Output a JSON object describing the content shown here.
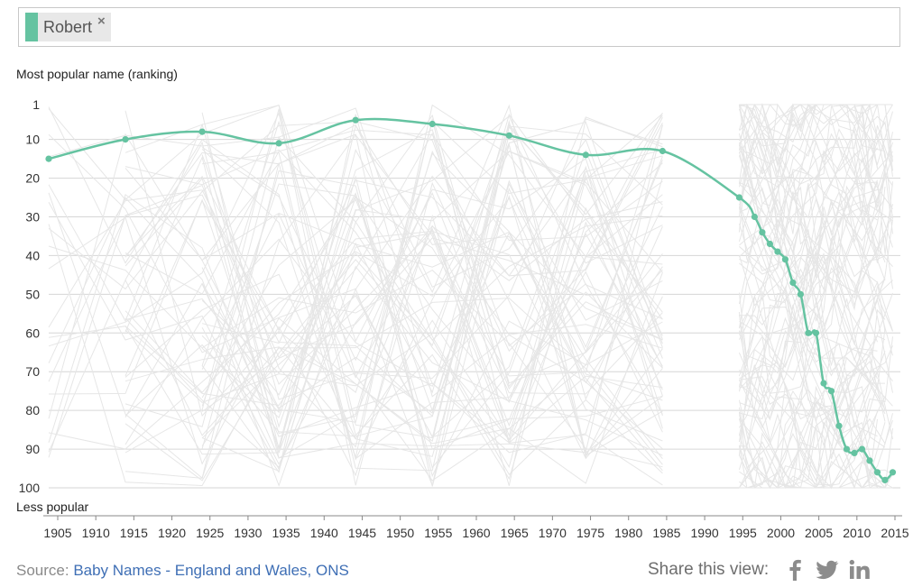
{
  "selection": {
    "tag_label": "Robert",
    "remove_symbol": "×",
    "color": "#65c3a1"
  },
  "chart_data": {
    "type": "line",
    "title": "",
    "ylabel": "Most popular name (ranking)",
    "ylabel_bottom": "Less popular",
    "xlabel": "",
    "x_ticks": [
      1905,
      1910,
      1915,
      1920,
      1925,
      1930,
      1935,
      1940,
      1945,
      1950,
      1955,
      1960,
      1965,
      1970,
      1975,
      1980,
      1985,
      1990,
      1995,
      2000,
      2005,
      2010,
      2015
    ],
    "y_ticks": [
      1,
      10,
      20,
      30,
      40,
      50,
      60,
      70,
      80,
      90,
      100
    ],
    "xlim": [
      1904,
      2015
    ],
    "ylim": [
      1,
      100
    ],
    "y_inverted": true,
    "grid": true,
    "series": [
      {
        "name": "Robert",
        "color": "#65c3a1",
        "x": [
          1904,
          1914,
          1924,
          1934,
          1944,
          1954,
          1964,
          1974,
          1984,
          1994,
          1996,
          1997,
          1998,
          1999,
          2000,
          2001,
          2002,
          2003,
          2004,
          2005,
          2006,
          2007,
          2008,
          2009,
          2010,
          2011,
          2012,
          2013,
          2014
        ],
        "y": [
          15,
          10,
          8,
          11,
          5,
          6,
          9,
          14,
          13,
          25,
          30,
          34,
          37,
          39,
          41,
          47,
          50,
          60,
          60,
          73,
          75,
          84,
          90,
          91,
          90,
          93,
          96,
          98,
          96
        ]
      }
    ],
    "background_lines_color": "#e6e6e6"
  },
  "footer": {
    "source_prefix": "Source: ",
    "source_link": "Baby Names - England and Wales, ONS",
    "share_label": "Share this view:"
  }
}
